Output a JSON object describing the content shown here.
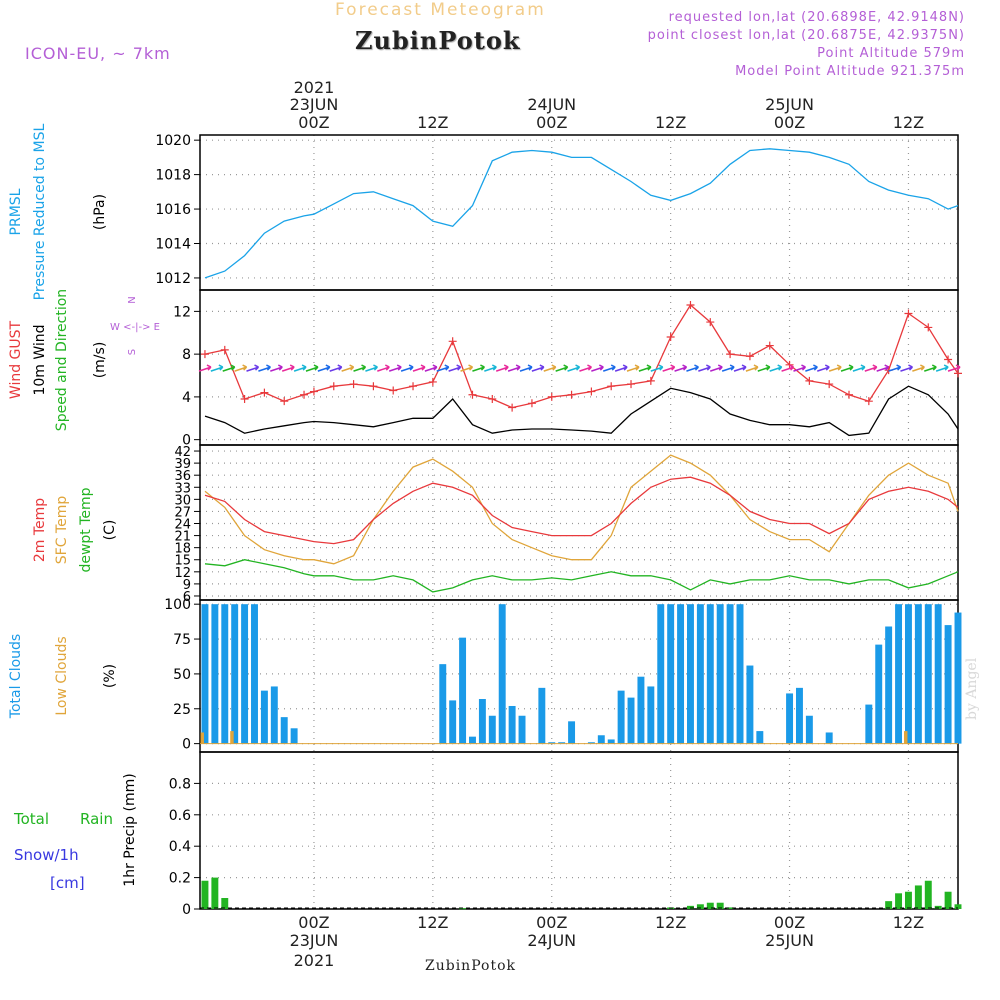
{
  "header": {
    "subtitle": "Forecast Meteogram",
    "title": "ZubinPotok",
    "model": "ICON-EU, ~ 7km",
    "requested": "requested lon,lat (20.6898E, 42.9148N)",
    "model_point": "point closest lon,lat (20.6875E, 42.9375N)",
    "altitude": "Point Altitude 579m",
    "model_altitude": "Model Point Altitude 921.375m"
  },
  "credit": "by Angel",
  "footer_name": "ZubinPotok",
  "colors": {
    "pressure": "#1aa3e8",
    "gust": "#e8393c",
    "wind": "#000000",
    "wind_dir": "#22b422",
    "temp2m": "#e8393c",
    "sfc_temp": "#e0a53a",
    "dewpt": "#22b422",
    "total_clouds": "#1a9ae8",
    "low_clouds": "#e0a53a",
    "rain": "#22b422",
    "snow": "#3838e0",
    "legend_purple": "#b45fd6",
    "grid": "#999999"
  },
  "time_axis": {
    "top_labels": [
      {
        "l1": "2021",
        "l2": "23JUN",
        "l3": "00Z",
        "h": 0
      },
      {
        "l1": "",
        "l2": "",
        "l3": "12Z",
        "h": 12
      },
      {
        "l1": "",
        "l2": "24JUN",
        "l3": "00Z",
        "h": 24
      },
      {
        "l1": "",
        "l2": "",
        "l3": "12Z",
        "h": 36
      },
      {
        "l1": "",
        "l2": "25JUN",
        "l3": "00Z",
        "h": 48
      },
      {
        "l1": "",
        "l2": "",
        "l3": "12Z",
        "h": 60
      }
    ],
    "bottom_labels": [
      {
        "l1": "00Z",
        "l2": "23JUN",
        "l3": "2021",
        "h": 0
      },
      {
        "l1": "12Z",
        "l2": "",
        "l3": "",
        "h": 12
      },
      {
        "l1": "00Z",
        "l2": "24JUN",
        "l3": "",
        "h": 24
      },
      {
        "l1": "12Z",
        "l2": "",
        "l3": "",
        "h": 36
      },
      {
        "l1": "00Z",
        "l2": "25JUN",
        "l3": "",
        "h": 48
      },
      {
        "l1": "12Z",
        "l2": "",
        "l3": "",
        "h": 60
      }
    ],
    "hour_range": [
      -11.5,
      65
    ]
  },
  "panels": {
    "pressure": {
      "ylabel1": "PRMSL",
      "ylabel2": "Pressure Reduced to MSL",
      "unit": "(hPa)",
      "yticks": [
        "1012",
        "1014",
        "1016",
        "1018",
        "1020"
      ],
      "ylim": [
        1011.3,
        1020.3
      ]
    },
    "wind": {
      "ylabel_gust": "Wind GUST",
      "ylabel_wind": "10m Wind",
      "ylabel_dir": "Speed and Direction",
      "unit": "(m/s)",
      "compass_n": "N",
      "compass_s": "S",
      "compass_ew": "W <-|-> E",
      "yticks": [
        "0",
        "4",
        "8",
        "12"
      ],
      "ylim": [
        -0.5,
        14
      ]
    },
    "temp": {
      "ylabel_t": "2m Temp",
      "ylabel_sfc": "SFC Temp",
      "ylabel_dew": "dewpt Temp",
      "unit": "(C)",
      "yticks": [
        "6",
        "9",
        "12",
        "15",
        "18",
        "21",
        "24",
        "27",
        "30",
        "33",
        "36",
        "39",
        "42"
      ],
      "ylim": [
        5,
        43.5
      ]
    },
    "clouds": {
      "ylabel_total": "Total Clouds",
      "ylabel_low": "Low Clouds",
      "unit": "(%)",
      "yticks": [
        "0",
        "25",
        "50",
        "75",
        "100"
      ],
      "ylim": [
        -6,
        103
      ]
    },
    "precip": {
      "label_total": "Total",
      "label_rain": "Rain",
      "label_snow": "Snow/1h",
      "label_cm": "[cm]",
      "ylabel": "1hr Precip (mm)",
      "yticks": [
        "0",
        "0.2",
        "0.4",
        "0.6",
        "0.8"
      ],
      "ylim": [
        0,
        1.0
      ]
    }
  },
  "chart_data": [
    {
      "type": "line",
      "title": "PRMSL Pressure Reduced to MSL",
      "ylabel": "(hPa)",
      "x_hours": [
        -11,
        -9,
        -7,
        -5,
        -3,
        -1,
        0,
        2,
        4,
        6,
        8,
        10,
        12,
        14,
        16,
        18,
        20,
        22,
        24,
        26,
        28,
        30,
        32,
        34,
        36,
        38,
        40,
        42,
        44,
        46,
        48,
        50,
        52,
        54,
        56,
        58,
        60,
        62,
        64,
        65
      ],
      "series": [
        {
          "name": "PRMSL",
          "values": [
            1012,
            1012.4,
            1013.3,
            1014.6,
            1015.3,
            1015.6,
            1015.7,
            1016.3,
            1016.9,
            1017.0,
            1016.6,
            1016.2,
            1015.3,
            1015.0,
            1016.2,
            1018.8,
            1019.3,
            1019.4,
            1019.3,
            1019.0,
            1019.0,
            1018.3,
            1017.6,
            1016.8,
            1016.5,
            1016.9,
            1017.5,
            1018.6,
            1019.4,
            1019.5,
            1019.4,
            1019.3,
            1019.0,
            1018.6,
            1017.6,
            1017.1,
            1016.8,
            1016.6,
            1016.0,
            1016.2
          ]
        }
      ],
      "ylim": [
        1011.3,
        1020.3
      ]
    },
    {
      "type": "line",
      "title": "Wind GUST / 10m Wind Speed and Direction",
      "ylabel": "(m/s)",
      "x_hours": [
        -11,
        -9,
        -7,
        -5,
        -3,
        -1,
        0,
        2,
        4,
        6,
        8,
        10,
        12,
        14,
        16,
        18,
        20,
        22,
        24,
        26,
        28,
        30,
        32,
        34,
        36,
        38,
        40,
        42,
        44,
        46,
        48,
        50,
        52,
        54,
        56,
        58,
        60,
        62,
        64,
        65
      ],
      "series": [
        {
          "name": "Wind GUST",
          "values": [
            8,
            8.4,
            3.8,
            4.4,
            3.6,
            4.2,
            4.5,
            5.0,
            5.2,
            5.0,
            4.6,
            5.0,
            5.4,
            9.2,
            4.2,
            3.8,
            3.0,
            3.4,
            4.0,
            4.2,
            4.5,
            5.0,
            5.2,
            5.5,
            9.6,
            12.6,
            11.0,
            8.0,
            7.8,
            8.8,
            7.0,
            5.5,
            5.2,
            4.2,
            3.6,
            6.5,
            11.8,
            10.5,
            7.5,
            6.2
          ]
        },
        {
          "name": "10m Wind",
          "values": [
            2.2,
            1.6,
            0.6,
            1.0,
            1.3,
            1.6,
            1.7,
            1.6,
            1.4,
            1.2,
            1.6,
            2.0,
            2.0,
            3.8,
            1.4,
            0.6,
            0.9,
            1.0,
            1.0,
            0.9,
            0.8,
            0.6,
            2.4,
            3.6,
            4.8,
            4.4,
            3.8,
            2.4,
            1.8,
            1.4,
            1.4,
            1.2,
            1.6,
            0.4,
            0.6,
            3.8,
            5.0,
            4.2,
            2.4,
            1.0
          ]
        }
      ],
      "ylim": [
        -0.5,
        14
      ]
    },
    {
      "type": "line",
      "title": "2m Temp / SFC Temp / dewpt Temp",
      "ylabel": "(C)",
      "x_hours": [
        -11,
        -9,
        -7,
        -5,
        -3,
        -1,
        0,
        2,
        4,
        6,
        8,
        10,
        12,
        14,
        16,
        18,
        20,
        22,
        24,
        26,
        28,
        30,
        32,
        34,
        36,
        38,
        40,
        42,
        44,
        46,
        48,
        50,
        52,
        54,
        56,
        58,
        60,
        62,
        64,
        65
      ],
      "series": [
        {
          "name": "2m Temp",
          "values": [
            31,
            29.5,
            25,
            22,
            21,
            20,
            19.5,
            19,
            20,
            25,
            29,
            32,
            34,
            33,
            31,
            26,
            23,
            22,
            21,
            21,
            21,
            24,
            29,
            33,
            35,
            35.5,
            34,
            31,
            27,
            25,
            24,
            24,
            21.5,
            24,
            30,
            32,
            33,
            32,
            30,
            28
          ]
        },
        {
          "name": "SFC Temp",
          "values": [
            32,
            28,
            21,
            17.5,
            16,
            15,
            15,
            14,
            16,
            25,
            32,
            38,
            40,
            37,
            33,
            24,
            20,
            18,
            16,
            15,
            15,
            21,
            33,
            37,
            41,
            39,
            36,
            31,
            25,
            22,
            20,
            20,
            17,
            24,
            31,
            36,
            39,
            36,
            34,
            27
          ]
        },
        {
          "name": "dewpt Temp",
          "values": [
            14,
            13.5,
            15,
            14,
            13,
            11.5,
            11,
            11,
            10,
            10,
            11,
            10,
            7,
            8,
            10,
            11,
            10,
            10,
            10.5,
            10,
            11,
            12,
            11,
            11,
            10,
            7.5,
            10,
            9,
            10,
            10,
            11,
            10,
            10,
            9,
            10,
            10,
            8,
            9,
            11,
            12
          ]
        }
      ],
      "ylim": [
        5,
        43.5
      ]
    },
    {
      "type": "bar",
      "title": "Total Clouds / Low Clouds",
      "ylabel": "(%)",
      "x_hours": [
        -11,
        -10,
        -9,
        -8,
        -7,
        -6,
        -5,
        -4,
        -3,
        -2,
        -1,
        0,
        1,
        2,
        3,
        4,
        5,
        6,
        7,
        8,
        9,
        10,
        11,
        12,
        13,
        14,
        15,
        16,
        17,
        18,
        19,
        20,
        21,
        22,
        23,
        24,
        25,
        26,
        27,
        28,
        29,
        30,
        31,
        32,
        33,
        34,
        35,
        36,
        37,
        38,
        39,
        40,
        41,
        42,
        43,
        44,
        45,
        46,
        47,
        48,
        49,
        50,
        51,
        52,
        53,
        54,
        55,
        56,
        57,
        58,
        59,
        60,
        61,
        62,
        63,
        64,
        65
      ],
      "series": [
        {
          "name": "Total Clouds",
          "values": [
            100,
            100,
            100,
            100,
            100,
            100,
            38,
            41,
            19,
            11,
            0,
            0,
            0,
            0,
            0,
            0,
            0,
            0,
            0,
            0,
            0,
            0,
            0,
            0,
            57,
            31,
            76,
            5,
            32,
            20,
            100,
            27,
            20,
            0,
            40,
            1,
            1,
            16,
            0,
            1,
            6,
            3,
            38,
            33,
            48,
            41,
            100,
            100,
            100,
            100,
            100,
            100,
            100,
            100,
            100,
            56,
            9,
            0,
            0,
            36,
            40,
            20,
            0,
            8,
            0,
            0,
            0,
            28,
            71,
            84,
            100,
            100,
            100,
            100,
            100,
            85,
            94
          ]
        },
        {
          "name": "Low Clouds",
          "values": [
            8,
            0,
            0,
            9,
            0,
            0,
            0,
            0,
            0,
            0,
            0,
            0,
            0,
            0,
            0,
            0,
            0,
            0,
            0,
            0,
            0,
            0,
            0,
            0,
            0,
            0,
            0,
            0,
            0,
            0,
            0,
            0,
            0,
            0,
            0,
            0,
            0,
            0,
            0,
            0,
            0,
            0,
            0,
            0,
            0,
            0,
            0,
            0,
            0,
            0,
            0,
            0,
            0,
            0,
            0,
            0,
            0,
            0,
            0,
            0,
            0,
            0,
            0,
            0,
            0,
            0,
            0,
            0,
            0,
            0,
            0,
            9,
            0,
            0,
            0,
            0,
            0
          ]
        }
      ],
      "ylim": [
        -6,
        103
      ]
    },
    {
      "type": "bar",
      "title": "1hr Precip",
      "ylabel": "1hr Precip (mm)",
      "x_hours": [
        -11,
        -10,
        -9,
        -8,
        -7,
        -6,
        -5,
        -4,
        -3,
        -2,
        -1,
        0,
        1,
        2,
        3,
        4,
        5,
        6,
        7,
        8,
        9,
        10,
        11,
        12,
        13,
        14,
        15,
        16,
        17,
        18,
        19,
        20,
        21,
        22,
        23,
        24,
        25,
        26,
        27,
        28,
        29,
        30,
        31,
        32,
        33,
        34,
        35,
        36,
        37,
        38,
        39,
        40,
        41,
        42,
        43,
        44,
        45,
        46,
        47,
        48,
        49,
        50,
        51,
        52,
        53,
        54,
        55,
        56,
        57,
        58,
        59,
        60,
        61,
        62,
        63,
        64,
        65
      ],
      "series": [
        {
          "name": "Total Rain",
          "values": [
            0.18,
            0.2,
            0.07,
            0,
            0,
            0,
            0,
            0,
            0,
            0,
            0,
            0,
            0,
            0,
            0,
            0,
            0,
            0,
            0,
            0,
            0,
            0,
            0,
            0,
            0,
            0,
            0.005,
            0,
            0,
            0,
            0,
            0,
            0,
            0,
            0,
            0,
            0,
            0,
            0,
            0,
            0,
            0,
            0,
            0,
            0,
            0,
            0,
            0.01,
            0,
            0.02,
            0.03,
            0.04,
            0.04,
            0.01,
            0,
            0,
            0,
            0,
            0,
            0,
            0,
            0,
            0,
            0,
            0,
            0,
            0,
            0,
            0,
            0.05,
            0.1,
            0.11,
            0.15,
            0.18,
            0.02,
            0.11,
            0.03
          ]
        }
      ],
      "ylim": [
        0,
        1.0
      ]
    }
  ]
}
